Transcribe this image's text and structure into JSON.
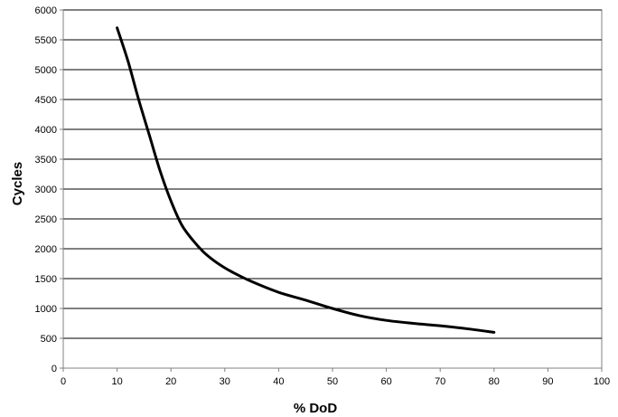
{
  "chart_data": {
    "type": "line",
    "xlabel": "% DoD",
    "ylabel": "Cycles",
    "xlim": [
      0,
      100
    ],
    "ylim": [
      0,
      6000
    ],
    "x_ticks": [
      0,
      10,
      20,
      30,
      40,
      50,
      60,
      70,
      80,
      90,
      100
    ],
    "y_ticks": [
      0,
      500,
      1000,
      1500,
      2000,
      2500,
      3000,
      3500,
      4000,
      4500,
      5000,
      5500,
      6000
    ],
    "grid": {
      "horizontal": true,
      "vertical": false
    },
    "legend": "none",
    "series": [
      {
        "x": [
          10,
          12,
          14,
          16,
          18,
          20,
          22,
          24,
          26,
          28,
          30,
          32,
          35,
          40,
          45,
          50,
          55,
          60,
          65,
          70,
          75,
          80
        ],
        "y": [
          5700,
          5150,
          4500,
          3900,
          3300,
          2800,
          2400,
          2150,
          1950,
          1800,
          1680,
          1580,
          1450,
          1270,
          1140,
          1000,
          880,
          800,
          750,
          710,
          660,
          600
        ],
        "color": "#000000"
      }
    ]
  }
}
